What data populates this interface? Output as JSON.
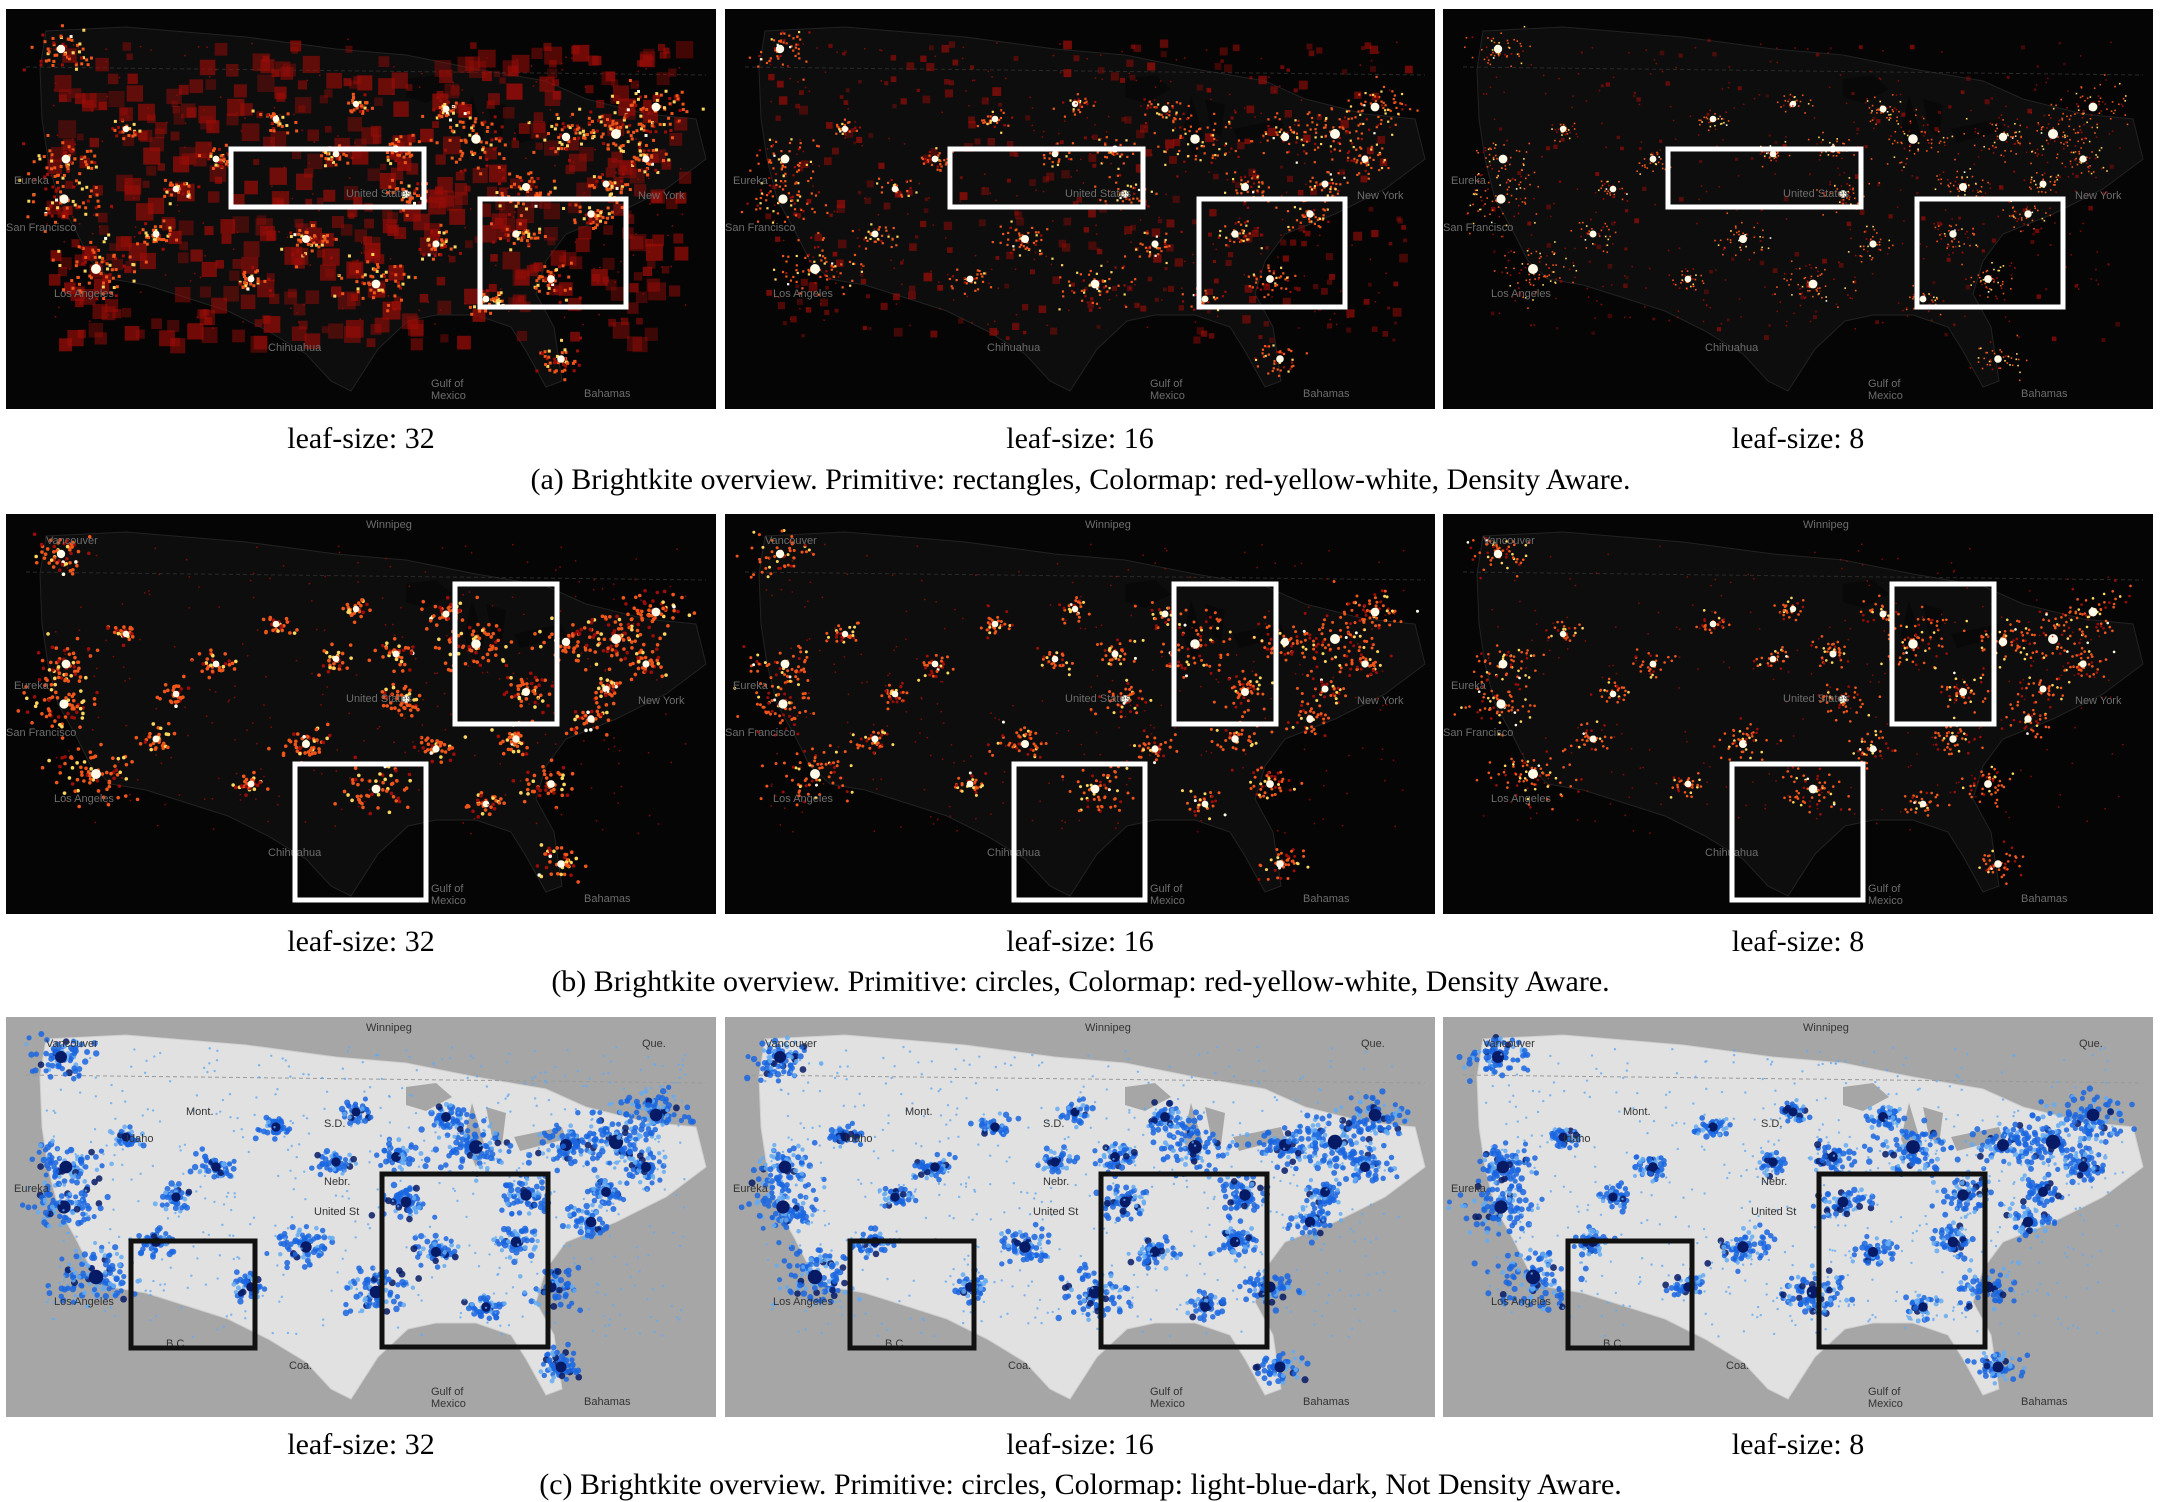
{
  "rows": [
    {
      "id": "a",
      "theme": "dark-heat",
      "primitive": "rectangles",
      "density_aware": true,
      "caption": "(a) Brightkite overview. Primitive: rectangles, Colormap: red-yellow-white, Density Aware.",
      "panels": [
        {
          "leaf_size": 32,
          "label": "leaf-size: 32"
        },
        {
          "leaf_size": 16,
          "label": "leaf-size: 16"
        },
        {
          "leaf_size": 8,
          "label": "leaf-size: 8"
        }
      ],
      "map_labels": [
        "Eureka",
        "San Francisco",
        "Los Angeles",
        "United States",
        "New York",
        "Chihuahua",
        "Gulf of",
        "Mexico",
        "Bahamas"
      ]
    },
    {
      "id": "b",
      "theme": "dark-heat",
      "primitive": "circles",
      "density_aware": true,
      "caption": "(b) Brightkite overview. Primitive: circles, Colormap: red-yellow-white, Density Aware.",
      "panels": [
        {
          "leaf_size": 32,
          "label": "leaf-size: 32"
        },
        {
          "leaf_size": 16,
          "label": "leaf-size: 16"
        },
        {
          "leaf_size": 8,
          "label": "leaf-size: 8"
        }
      ],
      "map_labels": [
        "Winnipeg",
        "Vancouver",
        "Eureka",
        "San Francisco",
        "Los Angeles",
        "United States",
        "New York",
        "Chihuahua",
        "Gulf of",
        "Mexico",
        "Bahamas"
      ]
    },
    {
      "id": "c",
      "theme": "light-blue",
      "primitive": "circles",
      "density_aware": false,
      "caption": "(c) Brightkite overview. Primitive: circles, Colormap: light-blue-dark, Not Density Aware.",
      "panels": [
        {
          "leaf_size": 32,
          "label": "leaf-size: 32"
        },
        {
          "leaf_size": 16,
          "label": "leaf-size: 16"
        },
        {
          "leaf_size": 8,
          "label": "leaf-size: 8"
        }
      ],
      "map_labels": [
        "Winnipeg",
        "Vancouver",
        "Mont.",
        "Idaho",
        "S.D.",
        "Nebr.",
        "Que.",
        "Eureka",
        "United St",
        "Los Angeles",
        "B.C.",
        "Coa.",
        "Gulf of",
        "Mexico",
        "Bahamas"
      ]
    }
  ],
  "colors": {
    "dark_bg": "#050505",
    "heat_red": "#9b0d08",
    "heat_orange": "#f0551a",
    "heat_yellow": "#ffd75e",
    "heat_white": "#fffbe8",
    "light_bg": "#e1e1e1",
    "water": "#a6a6a6",
    "blue_light": "#63aaf2",
    "blue_mid": "#1a66e0",
    "blue_dark": "#061a66",
    "box_light": "#ffffff",
    "box_dark": "#111111"
  }
}
